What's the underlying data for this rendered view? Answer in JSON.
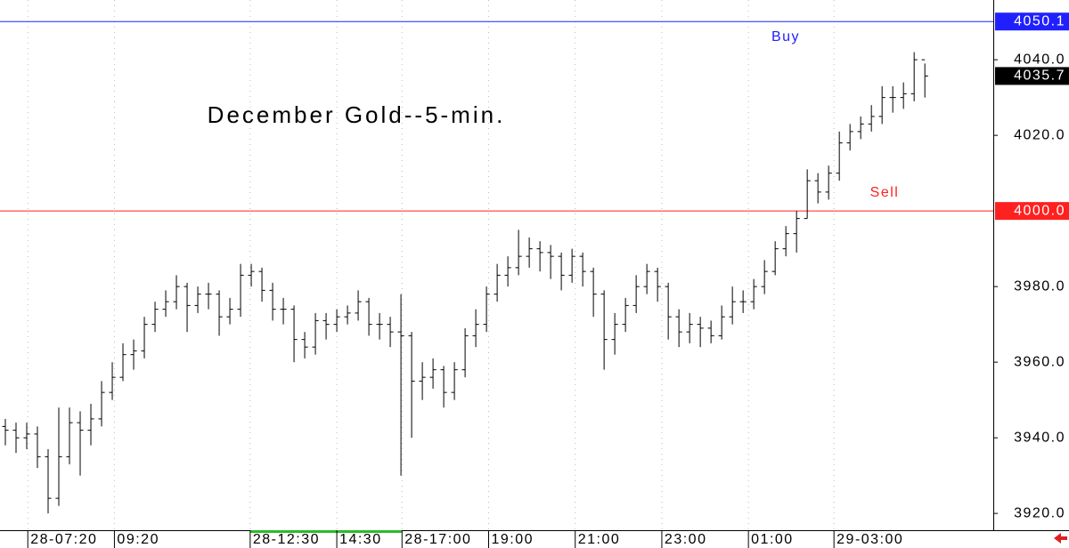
{
  "chart_data": {
    "type": "ohlc",
    "title": "December Gold--5-min.",
    "color": "#000000",
    "open": [
      3943,
      3942,
      3940,
      3941,
      3935,
      3924,
      3935,
      3944,
      3942,
      3945,
      3952,
      3956,
      3962,
      3963,
      3970,
      3974,
      3976,
      3980,
      3975,
      3978,
      3978,
      3972,
      3974,
      3983,
      3984,
      3979,
      3974,
      3974,
      3966,
      3964,
      3971,
      3970,
      3972,
      3973,
      3976,
      3970,
      3970,
      3968,
      3967,
      3955,
      3956,
      3958,
      3952,
      3958,
      3967,
      3970,
      3978,
      3983,
      3985,
      3988,
      3990,
      3989,
      3988,
      3983,
      3988,
      3984,
      3978,
      3966,
      3970,
      3975,
      3980,
      3984,
      3980,
      3972,
      3968,
      3970,
      3969,
      3967,
      3972,
      3976,
      3976,
      3980,
      3984,
      3990,
      3994,
      3998,
      4008,
      4005,
      4010,
      4018,
      4021,
      4023,
      4025,
      4030,
      4030,
      4031,
      4040
    ],
    "high": [
      3945,
      3944,
      3944,
      3943,
      3937,
      3948,
      3948,
      3947,
      3949,
      3955,
      3960,
      3965,
      3966,
      3972,
      3976,
      3979,
      3983,
      3981,
      3980,
      3981,
      3979,
      3977,
      3986,
      3986,
      3985,
      3981,
      3977,
      3975,
      3968,
      3973,
      3973,
      3974,
      3975,
      3979,
      3977,
      3973,
      3972,
      3978,
      3968,
      3960,
      3961,
      3959,
      3960,
      3969,
      3974,
      3980,
      3986,
      3988,
      3995,
      3993,
      3992,
      3991,
      3989,
      3990,
      3989,
      3985,
      3979,
      3973,
      3977,
      3983,
      3986,
      3985,
      3981,
      3974,
      3973,
      3972,
      3971,
      3975,
      3980,
      3979,
      3982,
      3987,
      3992,
      3996,
      4000,
      4011,
      4010,
      4012,
      4021,
      4023,
      4025,
      4028,
      4033,
      4033,
      4034,
      4042,
      4039
    ],
    "low": [
      3938,
      3936,
      3937,
      3932,
      3920,
      3922,
      3933,
      3930,
      3938,
      3943,
      3950,
      3955,
      3958,
      3961,
      3968,
      3972,
      3974,
      3968,
      3973,
      3974,
      3967,
      3970,
      3972,
      3980,
      3976,
      3971,
      3970,
      3960,
      3961,
      3962,
      3966,
      3968,
      3970,
      3971,
      3967,
      3966,
      3964,
      3930,
      3940,
      3950,
      3953,
      3948,
      3950,
      3956,
      3964,
      3968,
      3976,
      3980,
      3983,
      3985,
      3984,
      3982,
      3979,
      3981,
      3980,
      3972,
      3958,
      3962,
      3968,
      3973,
      3978,
      3976,
      3966,
      3964,
      3965,
      3964,
      3965,
      3966,
      3970,
      3973,
      3974,
      3978,
      3983,
      3988,
      3989,
      3998,
      4002,
      4003,
      4008,
      4016,
      4019,
      4021,
      4023,
      4026,
      4027,
      4029,
      4030
    ],
    "close": [
      3942,
      3940,
      3941,
      3935,
      3924,
      3935,
      3944,
      3942,
      3945,
      3952,
      3956,
      3962,
      3963,
      3970,
      3974,
      3976,
      3980,
      3975,
      3978,
      3978,
      3972,
      3974,
      3983,
      3984,
      3979,
      3974,
      3974,
      3966,
      3964,
      3971,
      3970,
      3972,
      3973,
      3976,
      3970,
      3970,
      3968,
      3967,
      3955,
      3956,
      3958,
      3952,
      3958,
      3967,
      3970,
      3978,
      3983,
      3985,
      3988,
      3990,
      3989,
      3988,
      3983,
      3988,
      3984,
      3978,
      3966,
      3970,
      3975,
      3980,
      3984,
      3980,
      3972,
      3968,
      3970,
      3969,
      3967,
      3972,
      3976,
      3976,
      3980,
      3984,
      3990,
      3994,
      3998,
      4008,
      4005,
      4010,
      4018,
      4021,
      4023,
      4025,
      4030,
      4030,
      4031,
      4040,
      4035.7
    ],
    "levels": [
      {
        "name": "Buy",
        "value": 4050.1,
        "color": "#2020ff"
      },
      {
        "name": "Sell",
        "value": 4000,
        "value_label": "4000.0",
        "color": "#ff2020"
      }
    ],
    "ylim": [
      3916.5,
      4055.8
    ],
    "yticks": [
      {
        "value": 3920,
        "label": "3920.0"
      },
      {
        "value": 3940,
        "label": "3940.0"
      },
      {
        "value": 3960,
        "label": "3960.0"
      },
      {
        "value": 3980,
        "label": "3980.0"
      },
      {
        "value": 4020,
        "label": "4020.0"
      },
      {
        "value": 4040,
        "label": "4040.0"
      }
    ],
    "xlim": [
      0,
      92.9
    ],
    "xticks": [
      {
        "value": 2.6,
        "label": "28-07:20"
      },
      {
        "value": 10.7,
        "label": "09:20"
      },
      {
        "value": 23.4,
        "label": "28-12:30"
      },
      {
        "value": 31.5,
        "label": "14:30"
      },
      {
        "value": 37.6,
        "label": "28-17:00"
      },
      {
        "value": 45.7,
        "label": "19:00"
      },
      {
        "value": 53.8,
        "label": "21:00"
      },
      {
        "value": 61.9,
        "label": "23:00"
      },
      {
        "value": 70,
        "label": "01:00"
      },
      {
        "value": 78,
        "label": "29-03:00"
      }
    ],
    "grid": true
  }
}
